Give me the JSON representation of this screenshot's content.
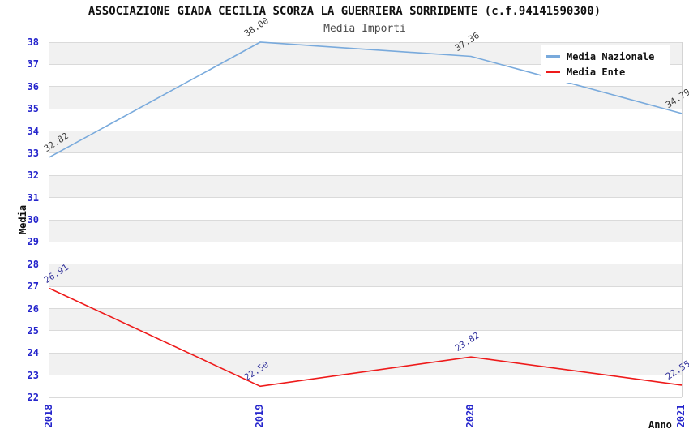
{
  "header": {
    "title": "ASSOCIAZIONE GIADA CECILIA SCORZA LA GUERRIERA SORRIDENTE (c.f.94141590300)",
    "subtitle": "Media Importi"
  },
  "axes": {
    "ylabel": "Media",
    "xlabel": "Anno"
  },
  "legend": {
    "position": "top-right",
    "items": [
      {
        "label": "Media Nazionale",
        "color": "#79aadc"
      },
      {
        "label": "Media Ente",
        "color": "#ee1a1a"
      }
    ]
  },
  "chart_data": {
    "type": "line",
    "title": "Media Importi",
    "xlabel": "Anno",
    "ylabel": "Media",
    "categories": [
      "2018",
      "2019",
      "2020",
      "2021"
    ],
    "series": [
      {
        "name": "Media Nazionale",
        "color": "#79aadc",
        "label_color": "#3b3b3b",
        "values": [
          32.82,
          38.0,
          37.36,
          34.79
        ],
        "point_labels": [
          "32.82",
          "38.00",
          "37.36",
          "34.79"
        ]
      },
      {
        "name": "Media Ente",
        "color": "#ee1a1a",
        "label_color": "#31319b",
        "values": [
          26.91,
          22.5,
          23.82,
          22.55
        ],
        "point_labels": [
          "26.91",
          "22.50",
          "23.82",
          "22.55"
        ]
      }
    ],
    "ylim": [
      22,
      38
    ],
    "ytick_step": 1,
    "yticks": [
      22,
      23,
      24,
      25,
      26,
      27,
      28,
      29,
      30,
      31,
      32,
      33,
      34,
      35,
      36,
      37,
      38
    ],
    "grid": "horizontal",
    "band_colors": [
      "#f1f1f1",
      "#ffffff"
    ],
    "tick_label_color": "#2525cc",
    "gridline_color": "#dadada",
    "legend_position": "top-right"
  }
}
